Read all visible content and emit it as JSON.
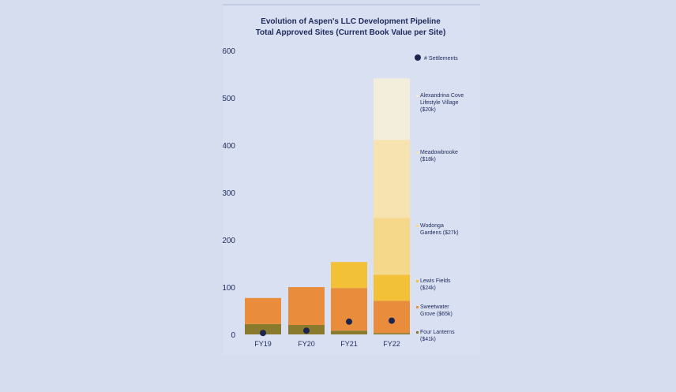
{
  "chart_data": {
    "type": "bar",
    "stacked": true,
    "title": [
      "Evolution of Aspen's LLC Development Pipeline",
      "Total Approved Sites (Current Book Value per Site)"
    ],
    "categories": [
      "FY19",
      "FY20",
      "FY21",
      "FY22"
    ],
    "ylim": [
      0,
      600
    ],
    "yticks": [
      0,
      100,
      200,
      300,
      400,
      500,
      600
    ],
    "xlabel": "",
    "ylabel": "",
    "series": [
      {
        "name": "Four Lanterns",
        "legend": [
          "Four Lanterns",
          "($41k)"
        ],
        "color": "#8a7a2e",
        "values": [
          22,
          20,
          8,
          3
        ]
      },
      {
        "name": "Sweetwater Grove",
        "legend": [
          "Sweetwater",
          "Grove ($65k)"
        ],
        "color": "#e98d3c",
        "values": [
          55,
          80,
          90,
          68
        ]
      },
      {
        "name": "Lewis Fields",
        "legend": [
          "Lewis Fields",
          "($24k)"
        ],
        "color": "#f2c138",
        "values": [
          0,
          0,
          55,
          55
        ]
      },
      {
        "name": "Wodonga Gardens",
        "legend": [
          "Wodonga",
          "Gardens ($27k)"
        ],
        "color": "#f5d889",
        "values": [
          0,
          0,
          0,
          120
        ]
      },
      {
        "name": "Meadowbrooke",
        "legend": [
          "Meadowbrooke",
          "($18k)"
        ],
        "color": "#f6e3b0",
        "values": [
          0,
          0,
          0,
          165
        ]
      },
      {
        "name": "Alexandrina Cove Lifestyle Village",
        "legend": [
          "Alexandrina Cove",
          "Lifestyle Village",
          "($20k)"
        ],
        "color": "#f2eedb",
        "values": [
          0,
          0,
          0,
          130
        ]
      }
    ],
    "markers": {
      "name": "# Settlements",
      "color": "#1b2550",
      "values": [
        3,
        8,
        27,
        29
      ]
    }
  }
}
